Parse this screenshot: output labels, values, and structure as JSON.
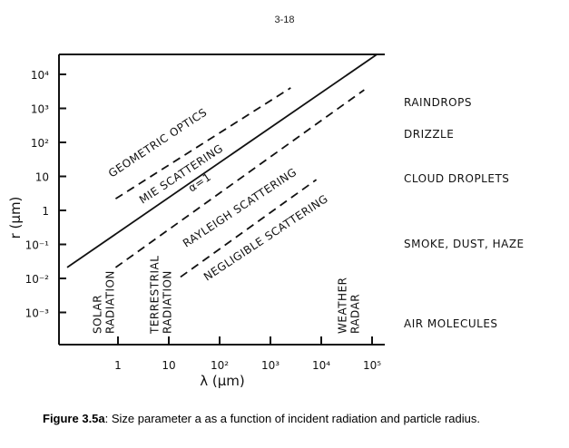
{
  "page_number": "3-18",
  "caption": {
    "label": "Figure 3.5a",
    "text": ": Size parameter a as a function of incident radiation and particle radius."
  },
  "chart_data": {
    "type": "line",
    "title": "",
    "xlabel": "λ (μm)",
    "ylabel": "r (μm)",
    "xscale": "log",
    "yscale": "log",
    "xlim": [
      0.1,
      200000
    ],
    "ylim": [
      0.0001,
      50000
    ],
    "x_ticks": [
      {
        "v": 1,
        "label": "1"
      },
      {
        "v": 10,
        "label": "10"
      },
      {
        "v": 100,
        "label": "10²"
      },
      {
        "v": 1000,
        "label": "10³"
      },
      {
        "v": 10000,
        "label": "10⁴"
      },
      {
        "v": 100000,
        "label": "10⁵"
      }
    ],
    "y_ticks": [
      {
        "v": 10000,
        "label": "10⁴"
      },
      {
        "v": 1000,
        "label": "10³"
      },
      {
        "v": 100,
        "label": "10²"
      },
      {
        "v": 10,
        "label": "10"
      },
      {
        "v": 1,
        "label": "1"
      },
      {
        "v": 0.1,
        "label": "10⁻¹"
      },
      {
        "v": 0.01,
        "label": "10⁻²"
      },
      {
        "v": 0.001,
        "label": "10⁻³"
      }
    ],
    "series": [
      {
        "name": "α=1",
        "style": "solid",
        "points": [
          [
            0.1,
            0.021
          ],
          [
            160000,
            50000
          ]
        ]
      },
      {
        "name": "geometric/mie boundary",
        "style": "dashed",
        "points": [
          [
            0.9,
            2.2
          ],
          [
            2500,
            4000
          ]
        ]
      },
      {
        "name": "mie/rayleigh boundary",
        "style": "dashed",
        "points": [
          [
            0.9,
            0.021
          ],
          [
            70000,
            3500
          ]
        ]
      },
      {
        "name": "rayleigh/negligible boundary",
        "style": "dashed",
        "points": [
          [
            17,
            0.011
          ],
          [
            8000,
            8
          ]
        ]
      }
    ],
    "region_labels": [
      "GEOMETRIC OPTICS",
      "MIE SCATTERING",
      "α=1",
      "RAYLEIGH SCATTERING",
      "NEGLIGIBLE SCATTERING"
    ],
    "band_labels": [
      {
        "text": [
          "SOLAR",
          "RADIATION"
        ],
        "x": 0.6
      },
      {
        "text": [
          "TERRESTRIAL",
          "RADIATION"
        ],
        "x": 8
      },
      {
        "text": [
          "WEATHER",
          "RADAR"
        ],
        "x": 40000
      }
    ],
    "particle_labels": [
      {
        "text": "RAINDROPS",
        "r": 2000
      },
      {
        "text": "DRIZZLE",
        "r": 200
      },
      {
        "text": "CLOUD DROPLETS",
        "r": 10
      },
      {
        "text": "SMOKE, DUST, HAZE",
        "r": 0.1
      },
      {
        "text": "AIR MOLECULES",
        "r": 0.0004
      }
    ]
  }
}
